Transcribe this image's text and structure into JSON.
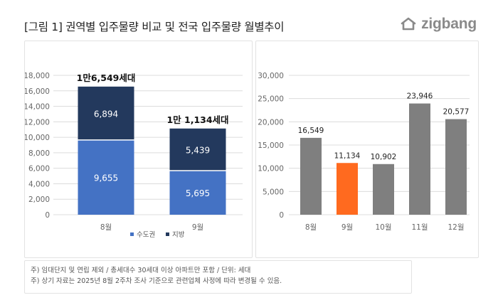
{
  "header": {
    "title": "[그림 1] 권역별 입주물량 비교 및 전국 입주물량 월별추이",
    "logo_text": "zigbang",
    "logo_icon": "zigbang-house-icon"
  },
  "colors": {
    "capital": "#4472c4",
    "local": "#23395d",
    "gray_bar": "#7f7f7f",
    "highlight_bar": "#ff6a1f"
  },
  "chart_data": [
    {
      "type": "bar",
      "stacked": true,
      "categories": [
        "8월",
        "9월"
      ],
      "series": [
        {
          "name": "수도권",
          "values": [
            9655,
            5695
          ],
          "labels": [
            "9,655",
            "5,695"
          ]
        },
        {
          "name": "지방",
          "values": [
            6894,
            5439
          ],
          "labels": [
            "6,894",
            "5,439"
          ]
        }
      ],
      "totals": [
        "1만6,549세대",
        "1만 1,134세대"
      ],
      "yticks": [
        "0",
        "2,000",
        "4,000",
        "6,000",
        "8,000",
        "10,000",
        "12,000",
        "14,000",
        "16,000",
        "18,000"
      ],
      "ylim": [
        0,
        18000
      ],
      "legend_position": "bottom"
    },
    {
      "type": "bar",
      "categories": [
        "8월",
        "9월",
        "10월",
        "11월",
        "12월"
      ],
      "values": [
        16549,
        11134,
        10902,
        23946,
        20577
      ],
      "labels": [
        "16,549",
        "11,134",
        "10,902",
        "23,946",
        "20,577"
      ],
      "highlight_index": 1,
      "yticks": [
        "0",
        "5,000",
        "10,000",
        "15,000",
        "20,000",
        "25,000",
        "30,000"
      ],
      "ylim": [
        0,
        30000
      ]
    }
  ],
  "notes": [
    "주) 임대단지 및 연립 제외 / 총세대수 30세대 이상 아파트만 포함 / 단위: 세대",
    "주) 상기 자료는 2025년 8월 2주차 조사 기준으로 관련업체 사정에 따라 변경될 수 있음."
  ]
}
